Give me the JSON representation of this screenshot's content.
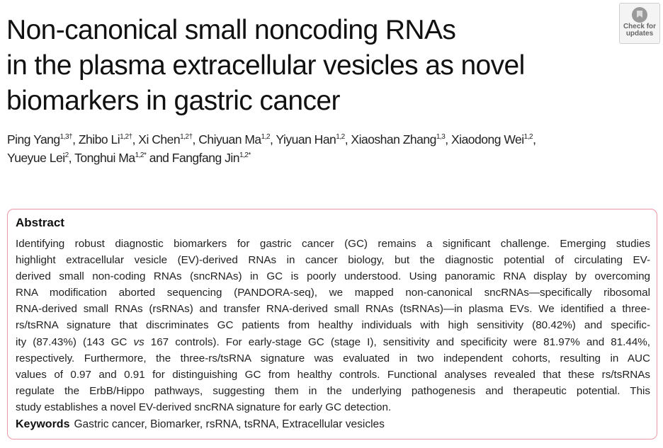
{
  "title_lines": [
    "Non-canonical small noncoding RNAs",
    "in the plasma extracellular vesicles as novel",
    "biomarkers in gastric cancer"
  ],
  "badge": {
    "line1": "Check for",
    "line2": "updates",
    "icon": "check-for-updates-icon"
  },
  "authors": [
    [
      {
        "n": "Ping Yang",
        "s": "1,3†"
      },
      {
        "n": ", Zhibo Li",
        "s": "1,2†"
      },
      {
        "n": ", Xi Chen",
        "s": "1,2†"
      },
      {
        "n": ", Chiyuan Ma",
        "s": "1,2"
      },
      {
        "n": ", Yiyuan Han",
        "s": "1,2"
      },
      {
        "n": ", Xiaoshan Zhang",
        "s": "1,3"
      },
      {
        "n": ", Xiaodong Wei",
        "s": "1,2"
      },
      {
        "n": ",",
        "s": ""
      }
    ],
    [
      {
        "n": "Yueyue Lei",
        "s": "2"
      },
      {
        "n": ", Tonghui Ma",
        "s": "1,2*"
      },
      {
        "n": " and Fangfang Jin",
        "s": "1,2*"
      }
    ]
  ],
  "abstract": {
    "heading": "Abstract",
    "lines": [
      "Identifying robust diagnostic biomarkers for gastric cancer (GC) remains a significant challenge. Emerging studies",
      "highlight extracellular vesicle (EV)-derived RNAs in cancer biology, but the diagnostic potential of circulating EV-",
      "derived small non-coding RNAs (sncRNAs) in GC is poorly understood. Using panoramic RNA display by overcoming",
      "RNA modification aborted sequencing (PANDORA-seq), we mapped non-canonical sncRNAs—specifically ribosomal",
      "RNA-derived small RNAs (rsRNAs) and transfer RNA-derived small RNAs (tsRNAs)—in plasma EVs. We identified a three-",
      "rs/tsRNA signature that discriminates GC patients from healthy individuals with high sensitivity (80.42%) and specific-",
      "ity (87.43%) (143 GC ",
      "respectively. Furthermore, the three-rs/tsRNA signature was evaluated in two independent cohorts, resulting in AUC",
      "values of 0.97 and 0.91 for distinguishing GC from healthy controls. Functional analyses revealed that these rs/tsRNAs",
      "regulate the ErbB/Hippo pathways, suggesting them in the underlying pathogenesis and therapeutic potential. This",
      "study establishes a novel EV-derived sncRNA signature for early GC detection."
    ],
    "line7_italic": "vs",
    "line7_rest": " 167 controls). For early-stage GC (stage I), sensitivity and specificity were 81.97% and 81.44%,"
  },
  "keywords": {
    "label": "Keywords",
    "value": "Gastric cancer, Biomarker, rsRNA, tsRNA, Extracellular vesicles"
  },
  "colors": {
    "abstract_border": "#ee97a6"
  }
}
